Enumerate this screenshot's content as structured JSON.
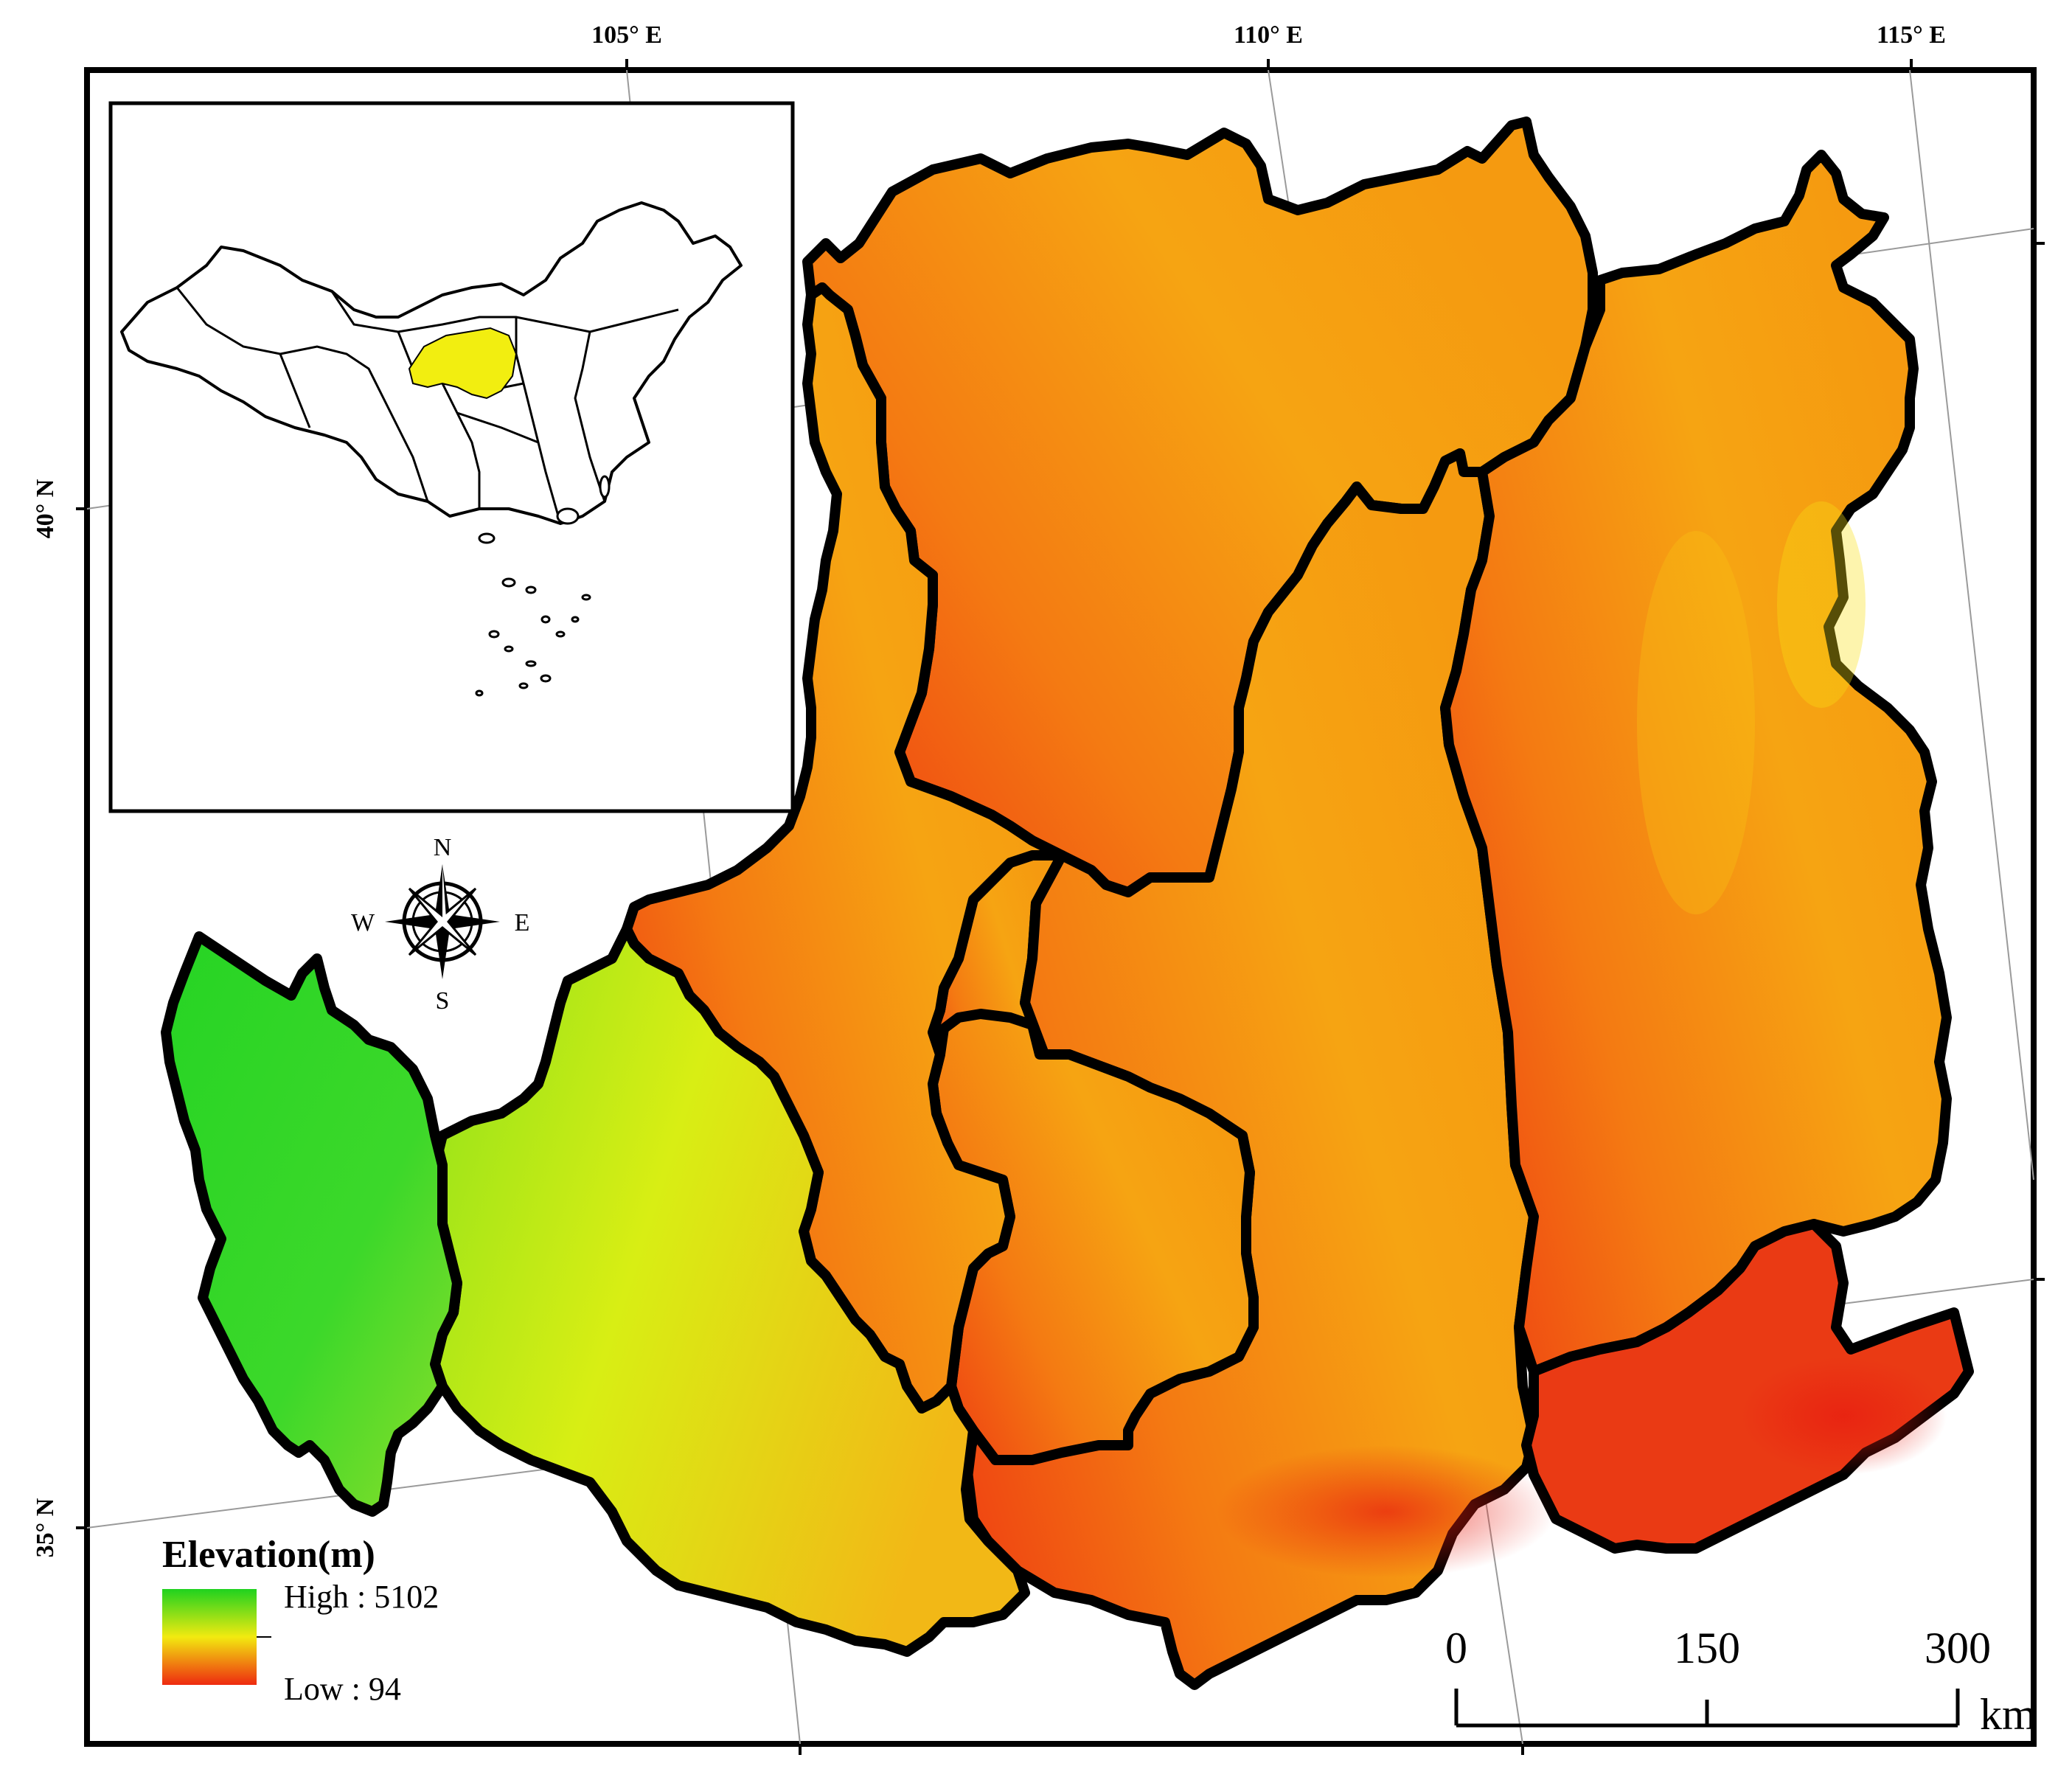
{
  "grid_labels": {
    "lon_105": "105° E",
    "lon_110": "110° E",
    "lon_115": "115° E",
    "lat_40": "40° N",
    "lat_35": "35° N"
  },
  "compass": {
    "north": "N",
    "south": "S",
    "east": "E",
    "west": "W"
  },
  "legend": {
    "title": "Elevation(m)",
    "high_label": "High : 5102",
    "low_label": "Low : 94",
    "high_color": "#1fd21f",
    "mid_color": "#f2ea10",
    "low_color": "#ee2a10"
  },
  "scale_bar": {
    "tick_0": "0",
    "tick_150": "150",
    "tick_300": "300",
    "unit": "km"
  },
  "inset": {
    "highlight_color": "#f2ee10"
  },
  "colors": {
    "boundary": "#000000",
    "frame": "#000000"
  }
}
